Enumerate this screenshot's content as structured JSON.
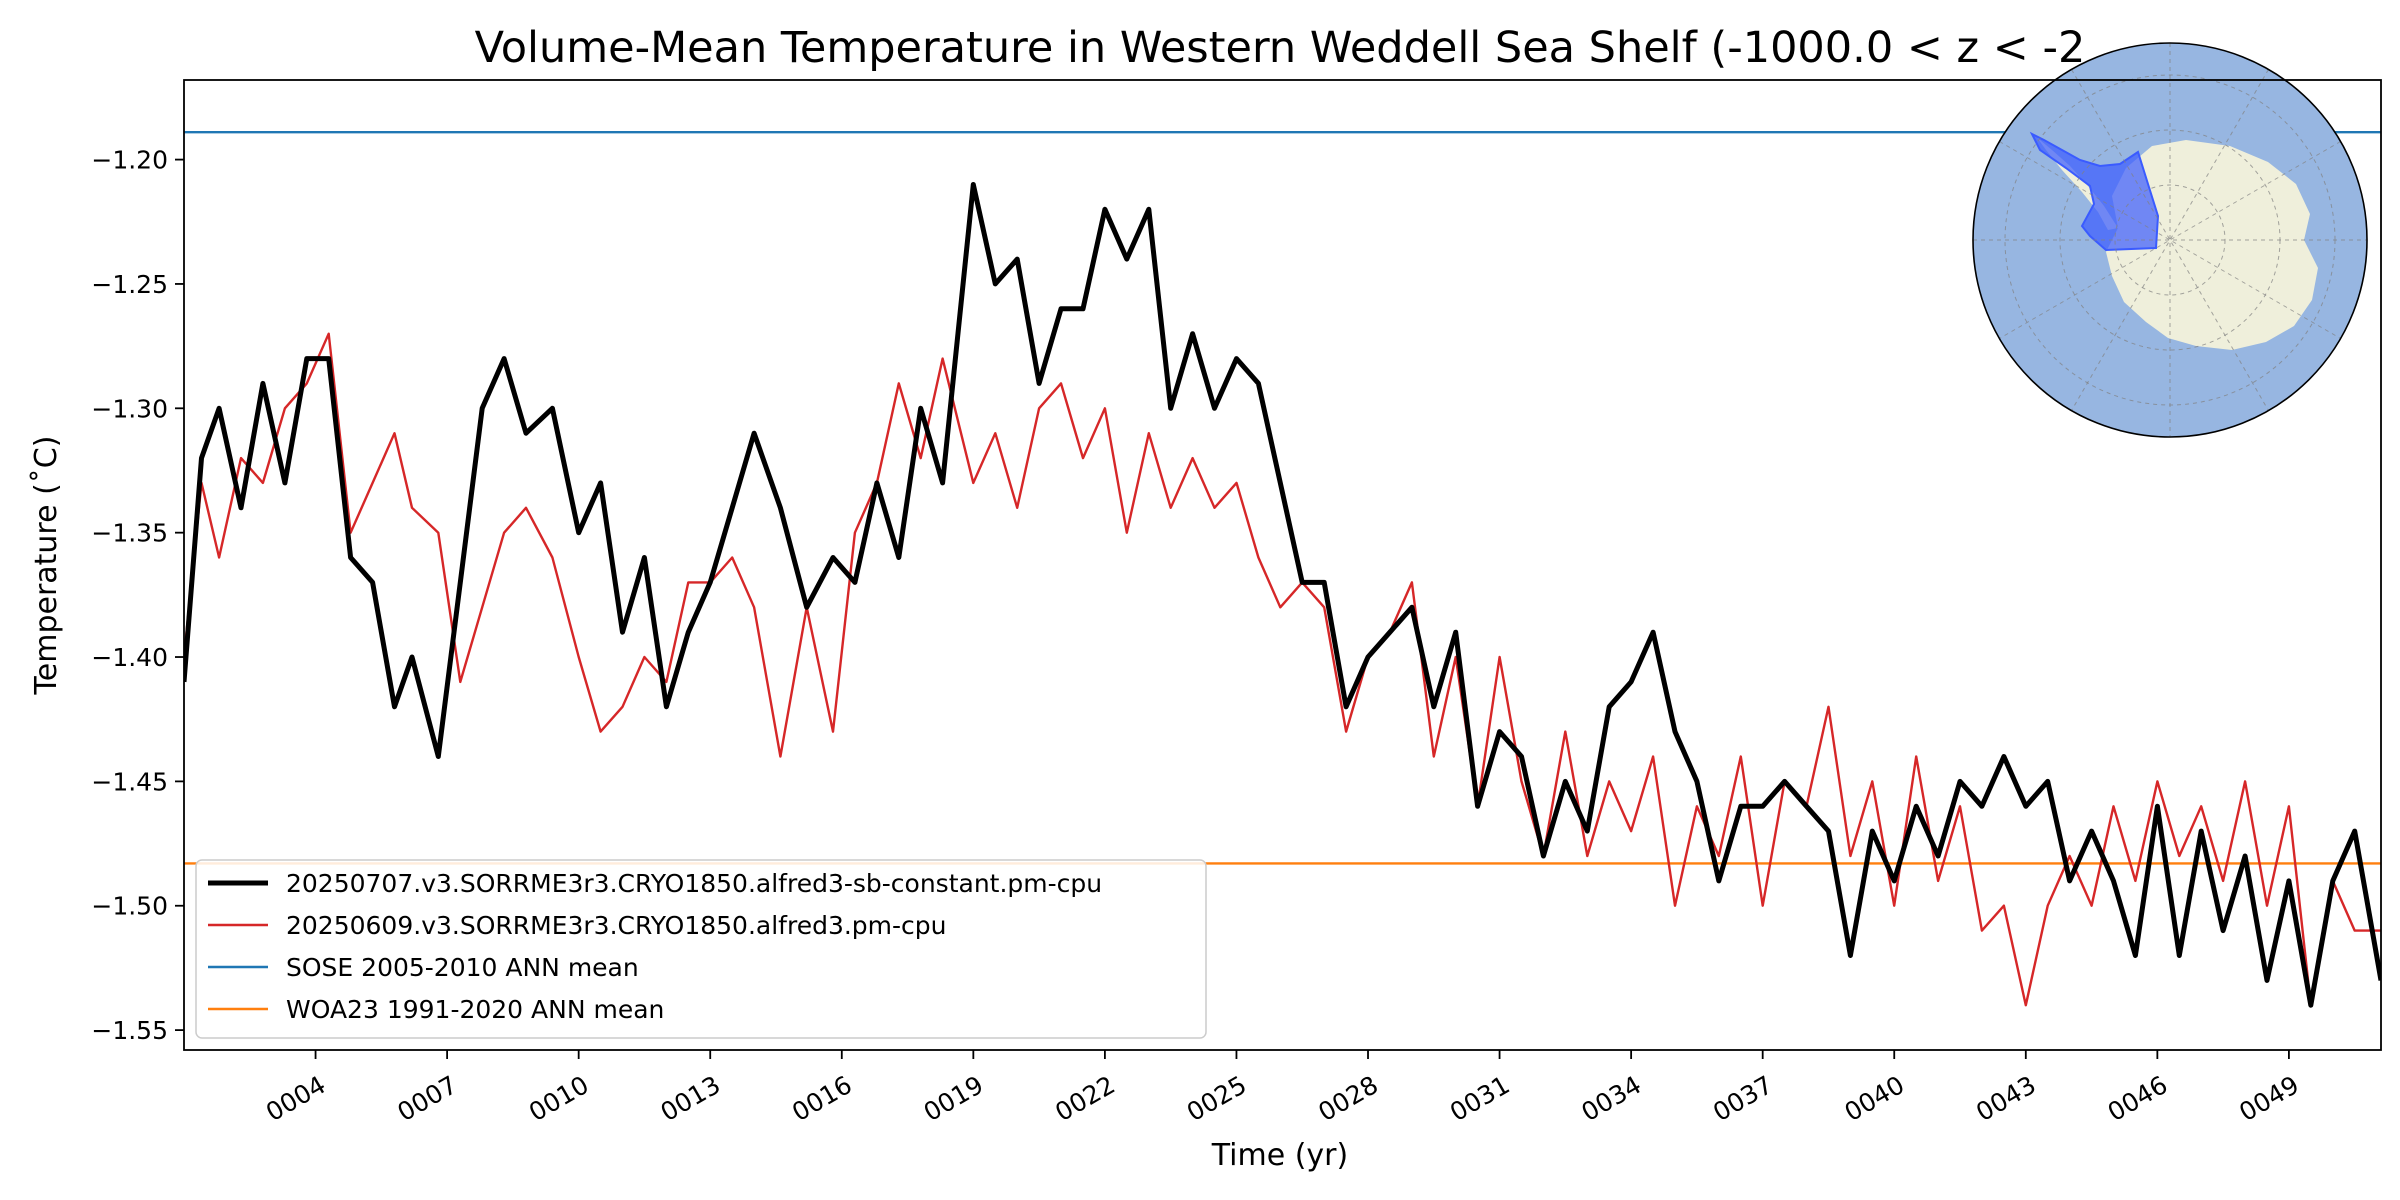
{
  "chart_data": {
    "type": "line",
    "title": "Volume-Mean Temperature in Western Weddell Sea Shelf (-1000.0 < z < -2",
    "xlabel": "Time (yr)",
    "ylabel": "Temperature (˚C)",
    "xlim": [
      1.0,
      51.1
    ],
    "ylim": [
      -1.558,
      -1.168
    ],
    "x_ticks": [
      4,
      7,
      10,
      13,
      16,
      19,
      22,
      25,
      28,
      31,
      34,
      37,
      40,
      43,
      46,
      49
    ],
    "x_tick_labels": [
      "0004",
      "0007",
      "0010",
      "0013",
      "0016",
      "0019",
      "0022",
      "0025",
      "0028",
      "0031",
      "0034",
      "0037",
      "0040",
      "0043",
      "0046",
      "0049"
    ],
    "y_ticks": [
      -1.2,
      -1.25,
      -1.3,
      -1.35,
      -1.4,
      -1.45,
      -1.5,
      -1.55
    ],
    "y_tick_labels": [
      "−1.20",
      "−1.25",
      "−1.30",
      "−1.35",
      "−1.40",
      "−1.45",
      "−1.50",
      "−1.55"
    ],
    "grid": false,
    "legend_position": "lower-left",
    "series": [
      {
        "name": "20250707.v3.SORRME3r3.CRYO1850.alfred3-sb-constant.pm-cpu",
        "color": "#000000",
        "x": [
          1.0,
          1.4,
          1.8,
          2.3,
          2.8,
          3.3,
          3.8,
          4.3,
          4.8,
          5.3,
          5.8,
          6.2,
          6.8,
          7.3,
          7.8,
          8.3,
          8.8,
          9.4,
          10.0,
          10.5,
          11.0,
          11.5,
          12.0,
          12.5,
          13.0,
          13.5,
          14.0,
          14.6,
          15.2,
          15.8,
          16.3,
          16.8,
          17.3,
          17.8,
          18.3,
          19.0,
          19.5,
          20.0,
          20.5,
          21.0,
          21.5,
          22.0,
          22.5,
          23.0,
          23.5,
          24.0,
          24.5,
          25.0,
          25.5,
          26.0,
          26.5,
          27.0,
          27.5,
          28.0,
          28.5,
          29.0,
          29.5,
          30.0,
          30.5,
          31.0,
          31.5,
          32.0,
          32.5,
          33.0,
          33.5,
          34.0,
          34.5,
          35.0,
          35.5,
          36.0,
          36.5,
          37.0,
          37.5,
          38.0,
          38.5,
          39.0,
          39.5,
          40.0,
          40.5,
          41.0,
          41.5,
          42.0,
          42.5,
          43.0,
          43.5,
          44.0,
          44.5,
          45.0,
          45.5,
          46.0,
          46.5,
          47.0,
          47.5,
          48.0,
          48.5,
          49.0,
          49.5,
          50.0,
          50.5,
          51.1
        ],
        "y": [
          -1.41,
          -1.32,
          -1.3,
          -1.34,
          -1.29,
          -1.33,
          -1.28,
          -1.28,
          -1.36,
          -1.37,
          -1.42,
          -1.4,
          -1.44,
          -1.37,
          -1.3,
          -1.28,
          -1.31,
          -1.3,
          -1.35,
          -1.33,
          -1.39,
          -1.36,
          -1.42,
          -1.39,
          -1.37,
          -1.34,
          -1.31,
          -1.34,
          -1.38,
          -1.36,
          -1.37,
          -1.33,
          -1.36,
          -1.3,
          -1.33,
          -1.21,
          -1.25,
          -1.24,
          -1.29,
          -1.26,
          -1.26,
          -1.22,
          -1.24,
          -1.22,
          -1.3,
          -1.27,
          -1.3,
          -1.28,
          -1.29,
          -1.33,
          -1.37,
          -1.37,
          -1.42,
          -1.4,
          -1.39,
          -1.38,
          -1.42,
          -1.39,
          -1.46,
          -1.43,
          -1.44,
          -1.48,
          -1.45,
          -1.47,
          -1.42,
          -1.41,
          -1.39,
          -1.43,
          -1.45,
          -1.49,
          -1.46,
          -1.46,
          -1.45,
          -1.46,
          -1.47,
          -1.52,
          -1.47,
          -1.49,
          -1.46,
          -1.48,
          -1.45,
          -1.46,
          -1.44,
          -1.46,
          -1.45,
          -1.49,
          -1.47,
          -1.49,
          -1.52,
          -1.46,
          -1.52,
          -1.47,
          -1.51,
          -1.48,
          -1.53,
          -1.49,
          -1.54,
          -1.49,
          -1.47,
          -1.53
        ]
      },
      {
        "name": "20250609.v3.SORRME3r3.CRYO1850.alfred3.pm-cpu",
        "color": "#d62728",
        "x": [
          1.0,
          1.4,
          1.8,
          2.3,
          2.8,
          3.3,
          3.8,
          4.3,
          4.8,
          5.3,
          5.8,
          6.2,
          6.8,
          7.3,
          7.8,
          8.3,
          8.8,
          9.4,
          10.0,
          10.5,
          11.0,
          11.5,
          12.0,
          12.5,
          13.0,
          13.5,
          14.0,
          14.6,
          15.2,
          15.8,
          16.3,
          16.8,
          17.3,
          17.8,
          18.3,
          19.0,
          19.5,
          20.0,
          20.5,
          21.0,
          21.5,
          22.0,
          22.5,
          23.0,
          23.5,
          24.0,
          24.5,
          25.0,
          25.5,
          26.0,
          26.5,
          27.0,
          27.5,
          28.0,
          28.5,
          29.0,
          29.5,
          30.0,
          30.5,
          31.0,
          31.5,
          32.0,
          32.5,
          33.0,
          33.5,
          34.0,
          34.5,
          35.0,
          35.5,
          36.0,
          36.5,
          37.0,
          37.5,
          38.0,
          38.5,
          39.0,
          39.5,
          40.0,
          40.5,
          41.0,
          41.5,
          42.0,
          42.5,
          43.0,
          43.5,
          44.0,
          44.5,
          45.0,
          45.5,
          46.0,
          46.5,
          47.0,
          47.5,
          48.0,
          48.5,
          49.0,
          49.5,
          50.0,
          50.5,
          51.1
        ],
        "y": [
          -1.4,
          -1.33,
          -1.36,
          -1.32,
          -1.33,
          -1.3,
          -1.29,
          -1.27,
          -1.35,
          -1.33,
          -1.31,
          -1.34,
          -1.35,
          -1.41,
          -1.38,
          -1.35,
          -1.34,
          -1.36,
          -1.4,
          -1.43,
          -1.42,
          -1.4,
          -1.41,
          -1.37,
          -1.37,
          -1.36,
          -1.38,
          -1.44,
          -1.38,
          -1.43,
          -1.35,
          -1.33,
          -1.29,
          -1.32,
          -1.28,
          -1.33,
          -1.31,
          -1.34,
          -1.3,
          -1.29,
          -1.32,
          -1.3,
          -1.35,
          -1.31,
          -1.34,
          -1.32,
          -1.34,
          -1.33,
          -1.36,
          -1.38,
          -1.37,
          -1.38,
          -1.43,
          -1.4,
          -1.39,
          -1.37,
          -1.44,
          -1.4,
          -1.46,
          -1.4,
          -1.45,
          -1.48,
          -1.43,
          -1.48,
          -1.45,
          -1.47,
          -1.44,
          -1.5,
          -1.46,
          -1.48,
          -1.44,
          -1.5,
          -1.45,
          -1.46,
          -1.42,
          -1.48,
          -1.45,
          -1.5,
          -1.44,
          -1.49,
          -1.46,
          -1.51,
          -1.5,
          -1.54,
          -1.5,
          -1.48,
          -1.5,
          -1.46,
          -1.49,
          -1.45,
          -1.48,
          -1.46,
          -1.49,
          -1.45,
          -1.5,
          -1.46,
          -1.54,
          -1.49,
          -1.51,
          -1.51
        ]
      }
    ],
    "reference_lines": [
      {
        "name": "SOSE 2005-2010 ANN mean",
        "color": "#1f77b4",
        "y": -1.189
      },
      {
        "name": "WOA23 1991-2020 ANN mean",
        "color": "#ff7f0e",
        "y": -1.483
      }
    ],
    "inset_map": {
      "colors": {
        "ocean": "#97b6e1",
        "land": "#efefdb",
        "region": "#3a5bff"
      }
    }
  }
}
